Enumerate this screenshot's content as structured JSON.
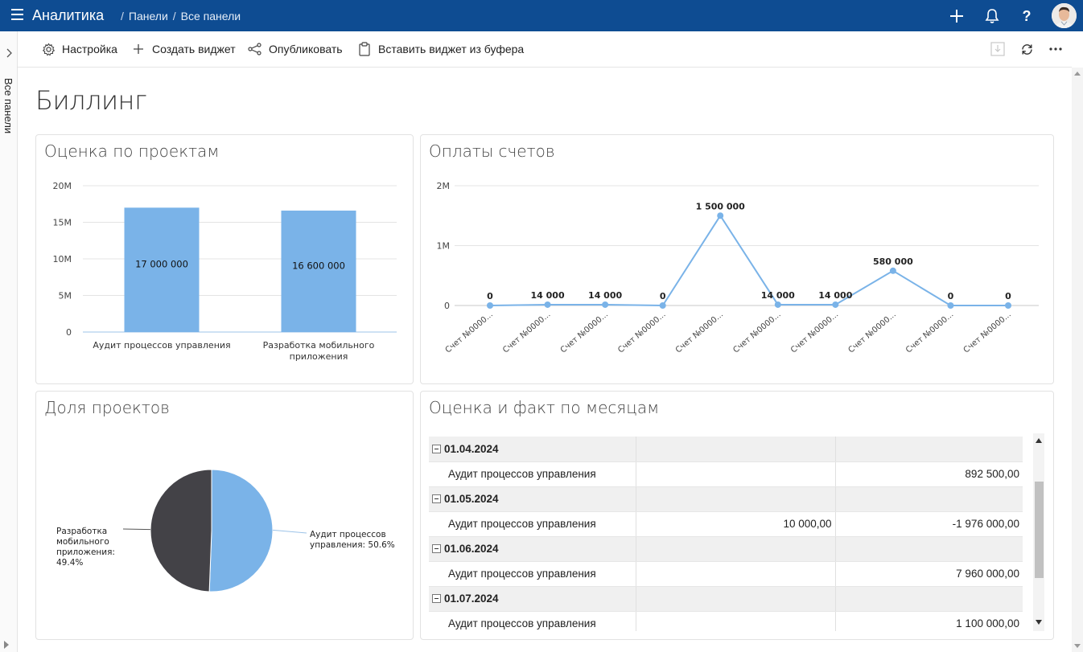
{
  "header": {
    "app_title": "Аналитика",
    "breadcrumb": [
      "Панели",
      "Все панели"
    ]
  },
  "rail": {
    "label": "Все панели"
  },
  "toolbar": {
    "settings": "Настройка",
    "create_widget": "Создать виджет",
    "publish": "Опубликовать",
    "paste_widget": "Вставить виджет из буфера"
  },
  "page": {
    "title": "Биллинг"
  },
  "colors": {
    "accent": "#0e4c92",
    "series_blue": "#7ab3e8",
    "series_dark": "#434247"
  },
  "widgets": {
    "estimate_by_project": {
      "title": "Оценка по проектам"
    },
    "invoice_payments": {
      "title": "Оплаты счетов"
    },
    "project_share": {
      "title": "Доля проектов"
    },
    "estimate_vs_fact": {
      "title": "Оценка и факт по месяцам"
    }
  },
  "chart_data": [
    {
      "type": "bar",
      "title": "Оценка по проектам",
      "categories": [
        "Аудит процессов управления",
        "Разработка мобильного приложения"
      ],
      "values": [
        17000000,
        16600000
      ],
      "data_labels": [
        "17 000 000",
        "16 600 000"
      ],
      "y_ticks": [
        "0",
        "5M",
        "10M",
        "15M",
        "20M"
      ],
      "ylim": [
        0,
        20000000
      ],
      "grid": true
    },
    {
      "type": "line",
      "title": "Оплаты счетов",
      "categories": [
        "Счет №0000...",
        "Счет №0000...",
        "Счет №0000...",
        "Счет №0000...",
        "Счет №0000...",
        "Счет №0000...",
        "Счет №0000...",
        "Счет №0000...",
        "Счет №0000...",
        "Счет №0000..."
      ],
      "values": [
        0,
        14000,
        14000,
        0,
        1500000,
        14000,
        14000,
        580000,
        0,
        0
      ],
      "data_labels": [
        "0",
        "14 000",
        "14 000",
        "0",
        "1 500 000",
        "14 000",
        "14 000",
        "580 000",
        "0",
        "0"
      ],
      "y_ticks": [
        "0",
        "1M",
        "2M"
      ],
      "ylim": [
        0,
        2000000
      ],
      "grid": true
    },
    {
      "type": "pie",
      "title": "Доля проектов",
      "slices": [
        {
          "label": "Аудит процессов управления: 50.6%",
          "value": 50.6,
          "color": "#7ab3e8"
        },
        {
          "label": "Разработка мобильного приложения: 49.4%",
          "value": 49.4,
          "color": "#434247"
        }
      ]
    }
  ],
  "grid": {
    "groups": [
      {
        "date": "01.04.2024",
        "rows": [
          {
            "name": "Аудит процессов управления",
            "estimate": "",
            "fact": "892 500,00"
          }
        ]
      },
      {
        "date": "01.05.2024",
        "rows": [
          {
            "name": "Аудит процессов управления",
            "estimate": "10 000,00",
            "fact": "-1 976 000,00"
          }
        ]
      },
      {
        "date": "01.06.2024",
        "rows": [
          {
            "name": "Аудит процессов управления",
            "estimate": "",
            "fact": "7 960 000,00"
          }
        ]
      },
      {
        "date": "01.07.2024",
        "rows": [
          {
            "name": "Аудит процессов управления",
            "estimate": "",
            "fact": "1 100 000,00"
          }
        ]
      }
    ]
  }
}
